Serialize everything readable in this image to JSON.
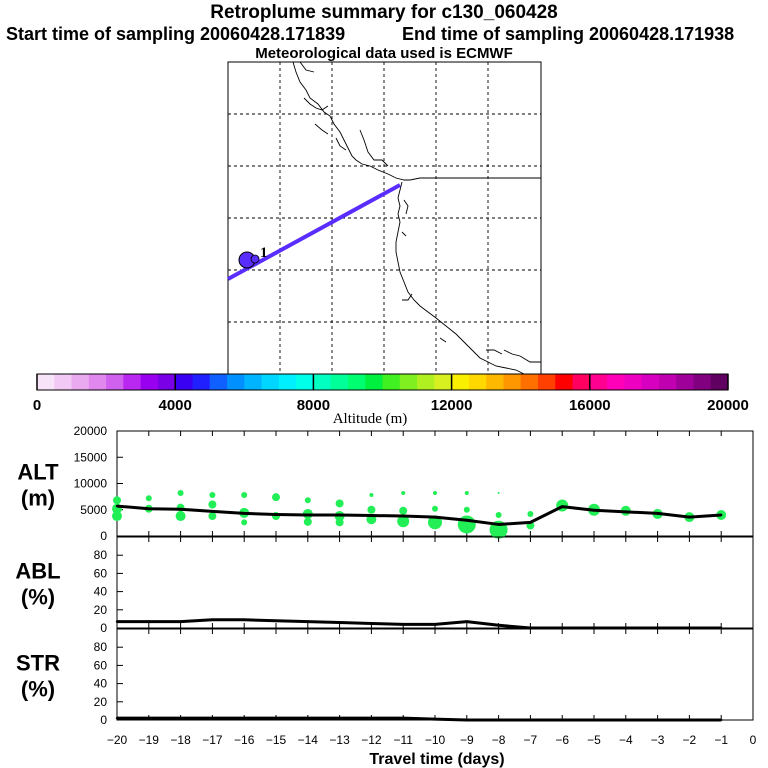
{
  "header": {
    "title": "Retroplume summary for c130_060428",
    "start": "Start time of sampling 20060428.171839",
    "end": "End time of sampling 20060428.171938",
    "met": "Meteorological data used is ECMWF"
  },
  "map": {
    "plume_label": "1"
  },
  "colors": {
    "trajectory": "#5a2dff",
    "bubble": "#22ee55",
    "line": "#000000"
  },
  "colorbar": {
    "label": "Altitude (m)",
    "ticks": [
      0,
      4000,
      8000,
      12000,
      16000,
      20000
    ],
    "colors": [
      "#f8e4f8",
      "#f2c8f4",
      "#eaaaf0",
      "#e088ee",
      "#d060ee",
      "#b828f0",
      "#9a00f0",
      "#7a00e8",
      "#3a00f4",
      "#2020ff",
      "#1060ff",
      "#0090ff",
      "#00b4ff",
      "#00d6ff",
      "#00f0ff",
      "#00ffe8",
      "#00ffc0",
      "#00ff98",
      "#00ff70",
      "#00f040",
      "#40f020",
      "#80f020",
      "#b0f020",
      "#d8f020",
      "#f8f000",
      "#ffd800",
      "#ffb800",
      "#ff9800",
      "#ff7000",
      "#ff4000",
      "#ff0000",
      "#ff0060",
      "#ff0090",
      "#ff00b8",
      "#ee00c0",
      "#d800c0",
      "#c000b0",
      "#a0009a",
      "#800080",
      "#600060"
    ]
  },
  "chart_data": [
    {
      "type": "line",
      "name": "ALT",
      "ylabel": "ALT\n(m)",
      "ylim": [
        0,
        20000
      ],
      "yticks": [
        0,
        5000,
        10000,
        15000,
        20000
      ],
      "x": [
        -20,
        -19,
        -18,
        -17,
        -16,
        -15,
        -14,
        -13,
        -12,
        -11,
        -10,
        -9,
        -8,
        -7,
        -6,
        -5,
        -4,
        -3,
        -2,
        -1
      ],
      "values": [
        5700,
        5200,
        5100,
        4700,
        4300,
        4100,
        4000,
        4000,
        3900,
        3800,
        3600,
        3000,
        2200,
        2600,
        5600,
        4900,
        4600,
        4300,
        3600,
        4000
      ],
      "spread": [
        {
          "x": -20,
          "alts": [
            6800,
            5200,
            3800
          ],
          "sizes": [
            4,
            5,
            5
          ]
        },
        {
          "x": -19,
          "alts": [
            7200,
            5200
          ],
          "sizes": [
            3,
            4
          ]
        },
        {
          "x": -18,
          "alts": [
            8200,
            5400,
            3800
          ],
          "sizes": [
            3,
            4,
            5
          ]
        },
        {
          "x": -17,
          "alts": [
            7800,
            6000,
            3800
          ],
          "sizes": [
            3,
            4,
            4
          ]
        },
        {
          "x": -16,
          "alts": [
            7800,
            4400,
            2600
          ],
          "sizes": [
            3,
            5,
            3
          ]
        },
        {
          "x": -15,
          "alts": [
            7400,
            3800
          ],
          "sizes": [
            4,
            4
          ]
        },
        {
          "x": -14,
          "alts": [
            6800,
            4200,
            2700
          ],
          "sizes": [
            3,
            5,
            4
          ]
        },
        {
          "x": -13,
          "alts": [
            6200,
            3800,
            2600
          ],
          "sizes": [
            4,
            5,
            4
          ]
        },
        {
          "x": -12,
          "alts": [
            7800,
            5000,
            3200
          ],
          "sizes": [
            2,
            4,
            5
          ]
        },
        {
          "x": -11,
          "alts": [
            8200,
            4800,
            2800
          ],
          "sizes": [
            2,
            4,
            6
          ]
        },
        {
          "x": -10,
          "alts": [
            8200,
            5200,
            2600
          ],
          "sizes": [
            2,
            3,
            7
          ]
        },
        {
          "x": -9,
          "alts": [
            8200,
            5000,
            2200
          ],
          "sizes": [
            2,
            3,
            9
          ]
        },
        {
          "x": -8,
          "alts": [
            8200,
            4000,
            1200
          ],
          "sizes": [
            1,
            3,
            9
          ]
        },
        {
          "x": -7,
          "alts": [
            4200,
            2000
          ],
          "sizes": [
            3,
            4
          ]
        },
        {
          "x": -6,
          "alts": [
            5800
          ],
          "sizes": [
            6
          ]
        },
        {
          "x": -5,
          "alts": [
            5000
          ],
          "sizes": [
            6
          ]
        },
        {
          "x": -4,
          "alts": [
            4800
          ],
          "sizes": [
            5
          ]
        },
        {
          "x": -3,
          "alts": [
            4200
          ],
          "sizes": [
            5
          ]
        },
        {
          "x": -2,
          "alts": [
            3600
          ],
          "sizes": [
            5
          ]
        },
        {
          "x": -1,
          "alts": [
            4000
          ],
          "sizes": [
            5
          ]
        }
      ]
    },
    {
      "type": "line",
      "name": "ABL",
      "ylabel": "ABL\n(%)",
      "ylim": [
        0,
        100
      ],
      "yticks": [
        0,
        20,
        40,
        60,
        80
      ],
      "x": [
        -20,
        -19,
        -18,
        -17,
        -16,
        -15,
        -14,
        -13,
        -12,
        -11,
        -10,
        -9,
        -8,
        -7,
        -6,
        -5,
        -4,
        -3,
        -2,
        -1
      ],
      "values": [
        7,
        7,
        7,
        9,
        9,
        8,
        7,
        6,
        5,
        4,
        4,
        7,
        3,
        0,
        0,
        0,
        0,
        0,
        0,
        0
      ]
    },
    {
      "type": "line",
      "name": "STR",
      "ylabel": "STR\n(%)",
      "ylim": [
        0,
        100
      ],
      "yticks": [
        0,
        20,
        40,
        60,
        80
      ],
      "x": [
        -20,
        -19,
        -18,
        -17,
        -16,
        -15,
        -14,
        -13,
        -12,
        -11,
        -10,
        -9,
        -8,
        -7,
        -6,
        -5,
        -4,
        -3,
        -2,
        -1
      ],
      "values": [
        2,
        2,
        2,
        2,
        2,
        2,
        2,
        2,
        2,
        2,
        1,
        0,
        0,
        0,
        0,
        0,
        0,
        0,
        0,
        0
      ]
    }
  ],
  "xaxis": {
    "label": "Travel time (days)",
    "ticks": [
      "−20",
      "−19",
      "−18",
      "−17",
      "−16",
      "−15",
      "−14",
      "−13",
      "−12",
      "−11",
      "−10",
      "−9",
      "−8",
      "−7",
      "−6",
      "−5",
      "−4",
      "−3",
      "−2",
      "−1",
      "0"
    ],
    "xlim": [
      -20,
      0
    ]
  }
}
